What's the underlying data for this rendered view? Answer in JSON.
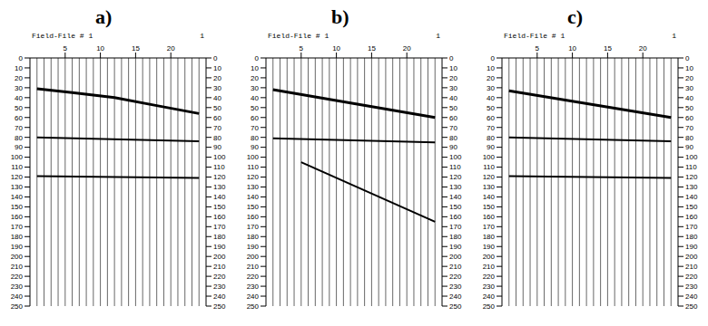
{
  "chart_data": [
    {
      "type": "line",
      "label": "a)",
      "title": "Field-File # 1",
      "annotation": "1",
      "xlim": [
        0,
        25
      ],
      "xticks": [
        5,
        10,
        15,
        20
      ],
      "ylim": [
        0,
        250
      ],
      "yticks": [
        0,
        10,
        20,
        30,
        40,
        50,
        60,
        70,
        80,
        90,
        100,
        110,
        120,
        130,
        140,
        150,
        160,
        170,
        180,
        190,
        200,
        210,
        220,
        230,
        240,
        250
      ],
      "traces": [
        1,
        2,
        3,
        4,
        5,
        6,
        7,
        8,
        9,
        10,
        11,
        12,
        13,
        14,
        15,
        16,
        17,
        18,
        19,
        20,
        21,
        22,
        23,
        24
      ],
      "grid": false,
      "color": "#000000",
      "series": [
        {
          "x": [
            1,
            6,
            12,
            18,
            24
          ],
          "values": [
            31,
            35,
            40,
            48,
            56
          ]
        },
        {
          "x": [
            1,
            24
          ],
          "values": [
            80,
            84
          ]
        },
        {
          "x": [
            1,
            24
          ],
          "values": [
            119,
            121
          ]
        }
      ]
    },
    {
      "type": "line",
      "label": "b)",
      "title": "Field-File # 1",
      "annotation": "1",
      "xlim": [
        0,
        25
      ],
      "xticks": [
        5,
        10,
        15,
        20
      ],
      "ylim": [
        0,
        250
      ],
      "yticks": [
        0,
        10,
        20,
        30,
        40,
        50,
        60,
        70,
        80,
        90,
        100,
        110,
        120,
        130,
        140,
        150,
        160,
        170,
        180,
        190,
        200,
        210,
        220,
        230,
        240,
        250
      ],
      "traces": [
        1,
        2,
        3,
        4,
        5,
        6,
        7,
        8,
        9,
        10,
        11,
        12,
        13,
        14,
        15,
        16,
        17,
        18,
        19,
        20,
        21,
        22,
        23,
        24
      ],
      "grid": false,
      "color": "#000000",
      "series": [
        {
          "x": [
            1,
            24
          ],
          "values": [
            32,
            60
          ]
        },
        {
          "x": [
            1,
            24
          ],
          "values": [
            81,
            85
          ]
        },
        {
          "x": [
            5,
            24
          ],
          "values": [
            105,
            165
          ]
        }
      ]
    },
    {
      "type": "line",
      "label": "c)",
      "title": "Field-File # 1",
      "annotation": "1",
      "xlim": [
        0,
        25
      ],
      "xticks": [
        5,
        10,
        15,
        20
      ],
      "ylim": [
        0,
        250
      ],
      "yticks": [
        0,
        10,
        20,
        30,
        40,
        50,
        60,
        70,
        80,
        90,
        100,
        110,
        120,
        130,
        140,
        150,
        160,
        170,
        180,
        190,
        200,
        210,
        220,
        230,
        240,
        250
      ],
      "traces": [
        1,
        2,
        3,
        4,
        5,
        6,
        7,
        8,
        9,
        10,
        11,
        12,
        13,
        14,
        15,
        16,
        17,
        18,
        19,
        20,
        21,
        22,
        23,
        24
      ],
      "grid": false,
      "color": "#000000",
      "series": [
        {
          "x": [
            1,
            24
          ],
          "values": [
            33,
            60
          ]
        },
        {
          "x": [
            1,
            24
          ],
          "values": [
            80,
            84
          ]
        },
        {
          "x": [
            1,
            24
          ],
          "values": [
            119,
            121
          ]
        }
      ]
    }
  ]
}
